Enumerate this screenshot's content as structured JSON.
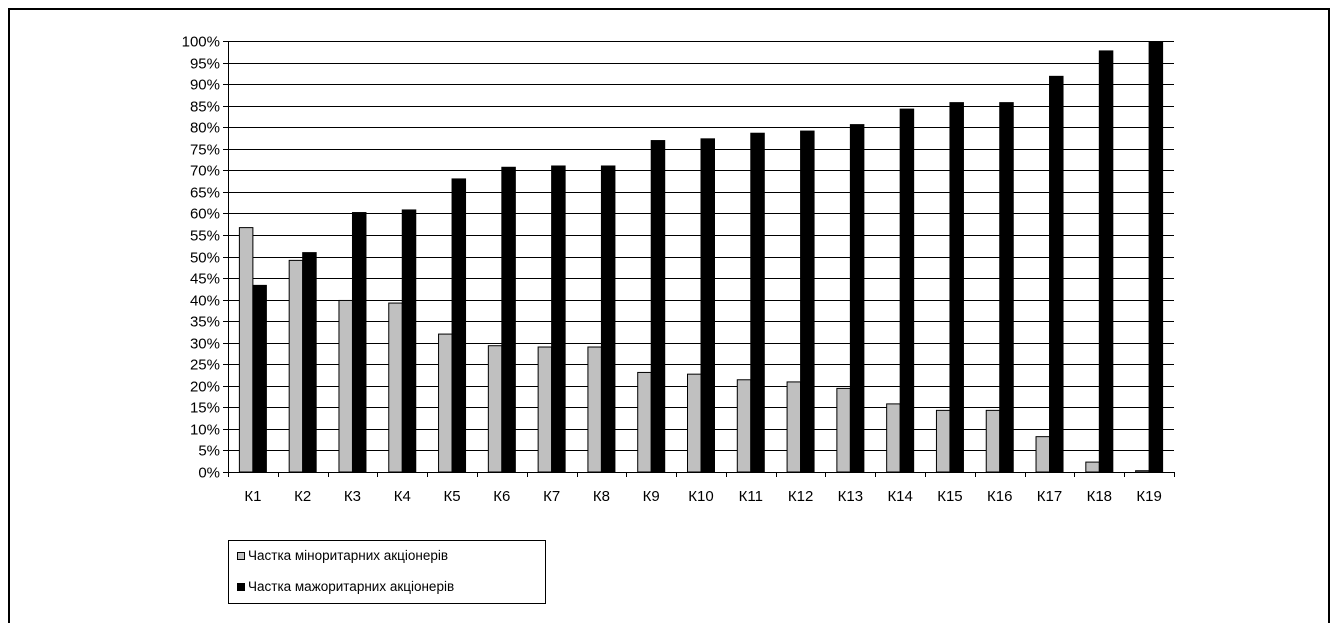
{
  "chart_data": {
    "type": "bar",
    "categories": [
      "К1",
      "К2",
      "К3",
      "К4",
      "К5",
      "К6",
      "К7",
      "К8",
      "К9",
      "К10",
      "К11",
      "К12",
      "К13",
      "К14",
      "К15",
      "К16",
      "К17",
      "К18",
      "К19"
    ],
    "series": [
      {
        "name": "Частка міноритарних акціонерів",
        "color": "#c0c0c0",
        "values": [
          56.7,
          49.1,
          39.8,
          39.2,
          32.0,
          29.3,
          29.0,
          29.0,
          23.1,
          22.7,
          21.4,
          20.9,
          19.4,
          15.8,
          14.3,
          14.3,
          8.2,
          2.3,
          0.3
        ]
      },
      {
        "name": "Частка мажоритарних акціонерів",
        "color": "#000000",
        "values": [
          43.3,
          50.9,
          60.2,
          60.8,
          68.0,
          70.7,
          71.0,
          71.0,
          76.9,
          77.3,
          78.6,
          79.1,
          80.6,
          84.2,
          85.7,
          85.7,
          91.8,
          97.7,
          99.7
        ]
      }
    ],
    "yticks": [
      "0%",
      "5%",
      "10%",
      "15%",
      "20%",
      "25%",
      "30%",
      "35%",
      "40%",
      "45%",
      "50%",
      "55%",
      "60%",
      "65%",
      "70%",
      "75%",
      "80%",
      "85%",
      "90%",
      "95%",
      "100%"
    ],
    "ylim": [
      0,
      100
    ],
    "title": "",
    "xlabel": "",
    "ylabel": "",
    "grid": true,
    "legend_position": "bottom-left"
  }
}
